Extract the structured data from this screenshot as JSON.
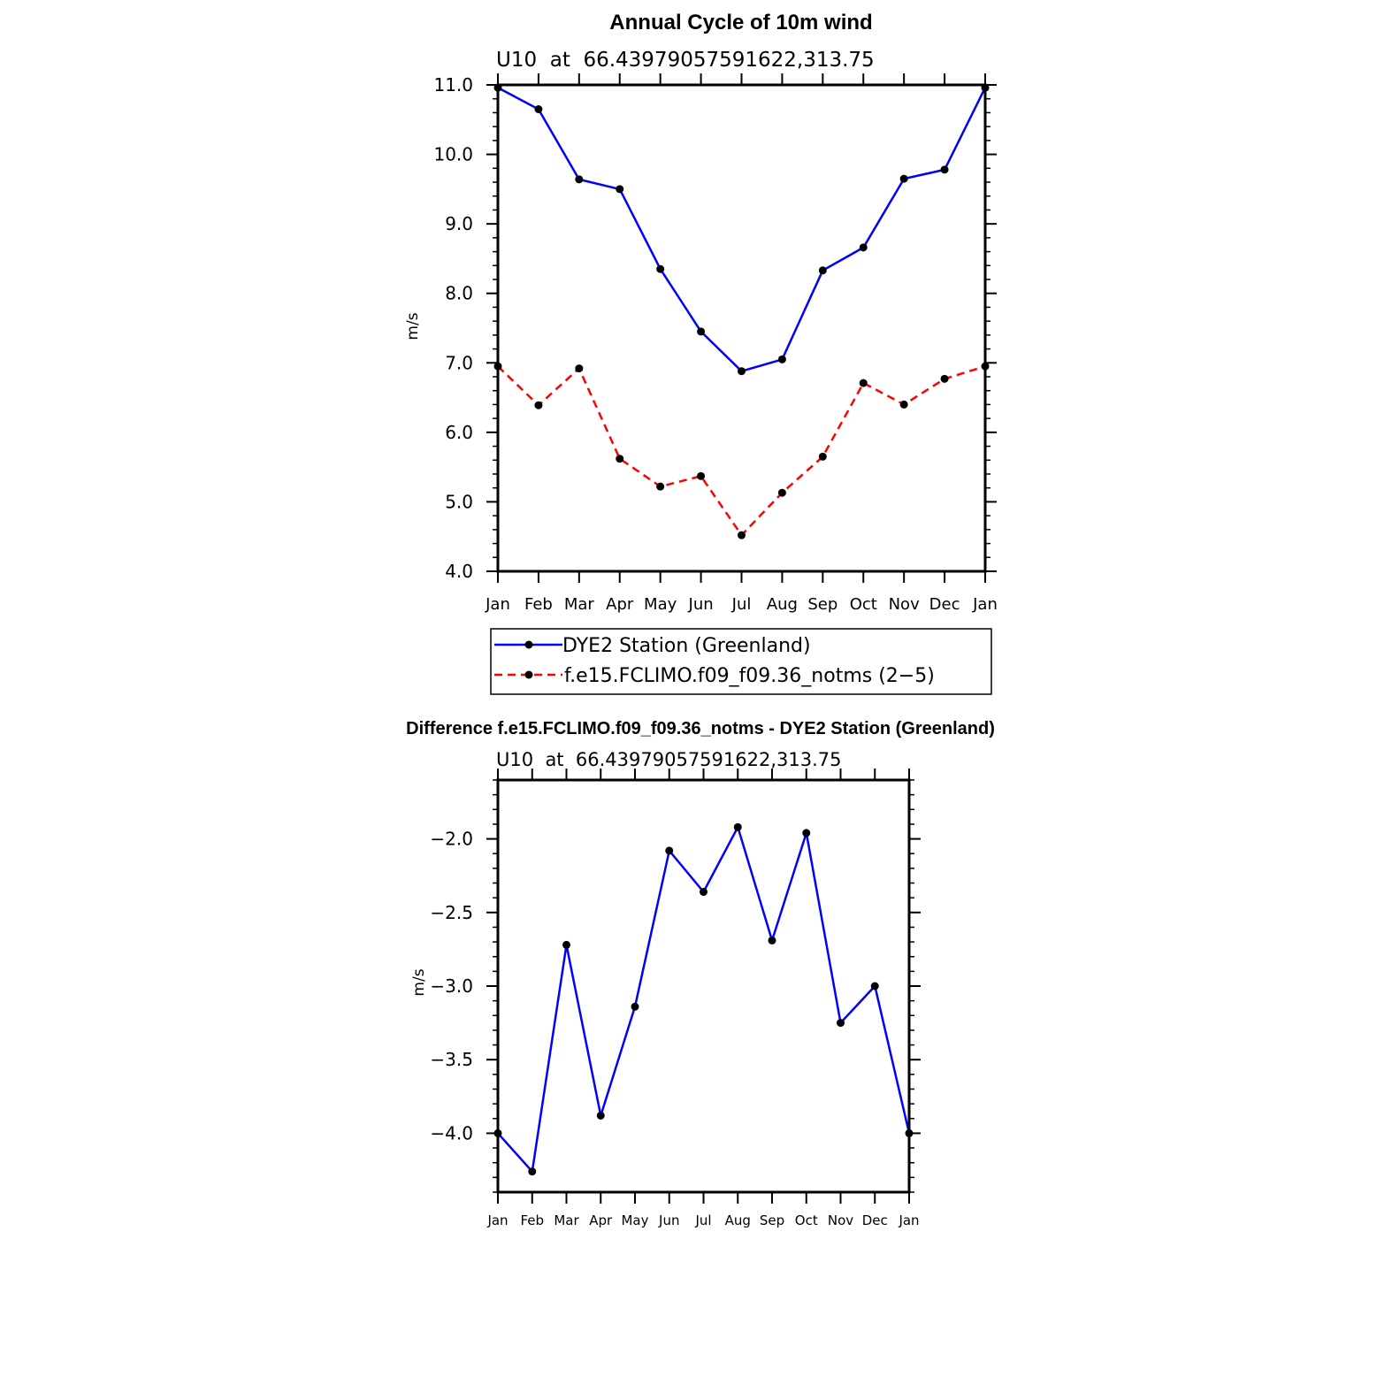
{
  "chart_data": [
    {
      "type": "line",
      "title": "Annual Cycle of 10m wind",
      "subtitle": "U10  at  66.43979057591622,313.75",
      "ylabel": "m/s",
      "xlabel": "",
      "categories": [
        "Jan",
        "Feb",
        "Mar",
        "Apr",
        "May",
        "Jun",
        "Jul",
        "Aug",
        "Sep",
        "Oct",
        "Nov",
        "Dec",
        "Jan"
      ],
      "ylim": [
        4.0,
        11.0
      ],
      "yticks": [
        "4.0",
        "5.0",
        "6.0",
        "7.0",
        "8.0",
        "9.0",
        "10.0",
        "11.0"
      ],
      "series": [
        {
          "name": "DYE2 Station (Greenland)",
          "color": "#0000ff",
          "dash": "solid",
          "values": [
            10.96,
            10.65,
            9.64,
            9.5,
            8.35,
            7.45,
            6.88,
            7.05,
            8.33,
            8.66,
            9.65,
            9.78,
            10.96
          ]
        },
        {
          "name": "f.e15.FCLIMO.f09_f09.36_notms (2−5)",
          "color": "#ff0000",
          "dash": "dashed",
          "values": [
            6.95,
            6.39,
            6.92,
            5.62,
            5.22,
            5.37,
            4.52,
            5.13,
            5.65,
            6.71,
            6.4,
            6.77,
            6.95
          ]
        }
      ],
      "legend": "below"
    },
    {
      "type": "line",
      "title": "Difference f.e15.FCLIMO.f09_f09.36_notms - DYE2 Station (Greenland)",
      "subtitle": "U10  at  66.43979057591622,313.75",
      "ylabel": "m/s",
      "xlabel": "",
      "categories": [
        "Jan",
        "Feb",
        "Mar",
        "Apr",
        "May",
        "Jun",
        "Jul",
        "Aug",
        "Sep",
        "Oct",
        "Nov",
        "Dec",
        "Jan"
      ],
      "ylim": [
        -4.4,
        -1.6
      ],
      "yticks": [
        "-4.0",
        "-3.5",
        "-3.0",
        "-2.5",
        "-2.0"
      ],
      "series": [
        {
          "name": "Difference",
          "color": "#0000ff",
          "dash": "solid",
          "values": [
            -4.0,
            -4.26,
            -2.72,
            -3.88,
            -3.14,
            -2.08,
            -2.36,
            -1.92,
            -2.69,
            -1.96,
            -3.25,
            -3.0,
            -4.0
          ]
        }
      ]
    }
  ]
}
